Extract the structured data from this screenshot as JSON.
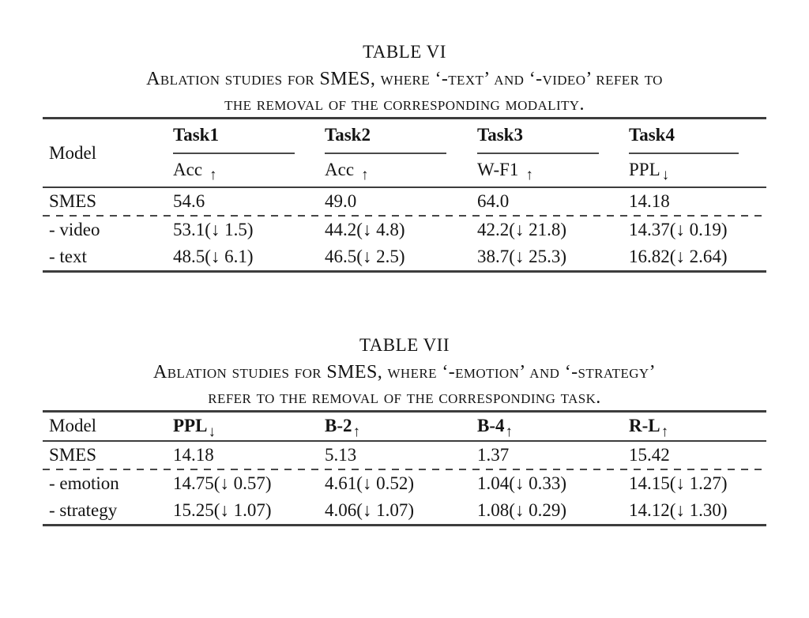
{
  "colors": {
    "background": "#ffffff",
    "text": "#141414",
    "rule": "#3d3d3d"
  },
  "table_vi": {
    "title": "TABLE VI",
    "caption_line1": "Ablation studies for SMES, where ‘-text’ and ‘-video’ refer to",
    "caption_line2": "the removal of the corresponding modality.",
    "model_header": "Model",
    "task_headers": [
      "Task1",
      "Task2",
      "Task3",
      "Task4"
    ],
    "metric_headers": [
      {
        "label": "Acc",
        "arrow": "↑"
      },
      {
        "label": "Acc",
        "arrow": "↑"
      },
      {
        "label": "W-F1",
        "arrow": "↑"
      },
      {
        "label": "PPL",
        "arrow": "↓"
      }
    ],
    "rows": [
      {
        "model": "SMES",
        "cells": [
          "54.6",
          "49.0",
          "64.0",
          "14.18"
        ]
      },
      {
        "model": "- video",
        "cells": [
          "53.1(↓ 1.5)",
          "44.2(↓ 4.8)",
          "42.2(↓ 21.8)",
          "14.37(↓ 0.19)"
        ]
      },
      {
        "model": "- text",
        "cells": [
          "48.5(↓ 6.1)",
          "46.5(↓ 2.5)",
          "38.7(↓ 25.3)",
          "16.82(↓ 2.64)"
        ]
      }
    ]
  },
  "table_vii": {
    "title": "TABLE VII",
    "caption_line1": "Ablation studies for SMES, where ‘-emotion’ and ‘-strategy’",
    "caption_line2": "refer to the removal of the corresponding task.",
    "model_header": "Model",
    "metric_headers": [
      {
        "label": "PPL",
        "arrow": "↓"
      },
      {
        "label": "B-2",
        "arrow": "↑"
      },
      {
        "label": "B-4",
        "arrow": "↑"
      },
      {
        "label": "R-L",
        "arrow": "↑"
      }
    ],
    "rows": [
      {
        "model": "SMES",
        "cells": [
          "14.18",
          "5.13",
          "1.37",
          "15.42"
        ]
      },
      {
        "model": "- emotion",
        "cells": [
          "14.75(↓ 0.57)",
          "4.61(↓ 0.52)",
          "1.04(↓ 0.33)",
          "14.15(↓ 1.27)"
        ]
      },
      {
        "model": "- strategy",
        "cells": [
          "15.25(↓ 1.07)",
          "4.06(↓ 1.07)",
          "1.08(↓ 0.29)",
          "14.12(↓ 1.30)"
        ]
      }
    ]
  }
}
